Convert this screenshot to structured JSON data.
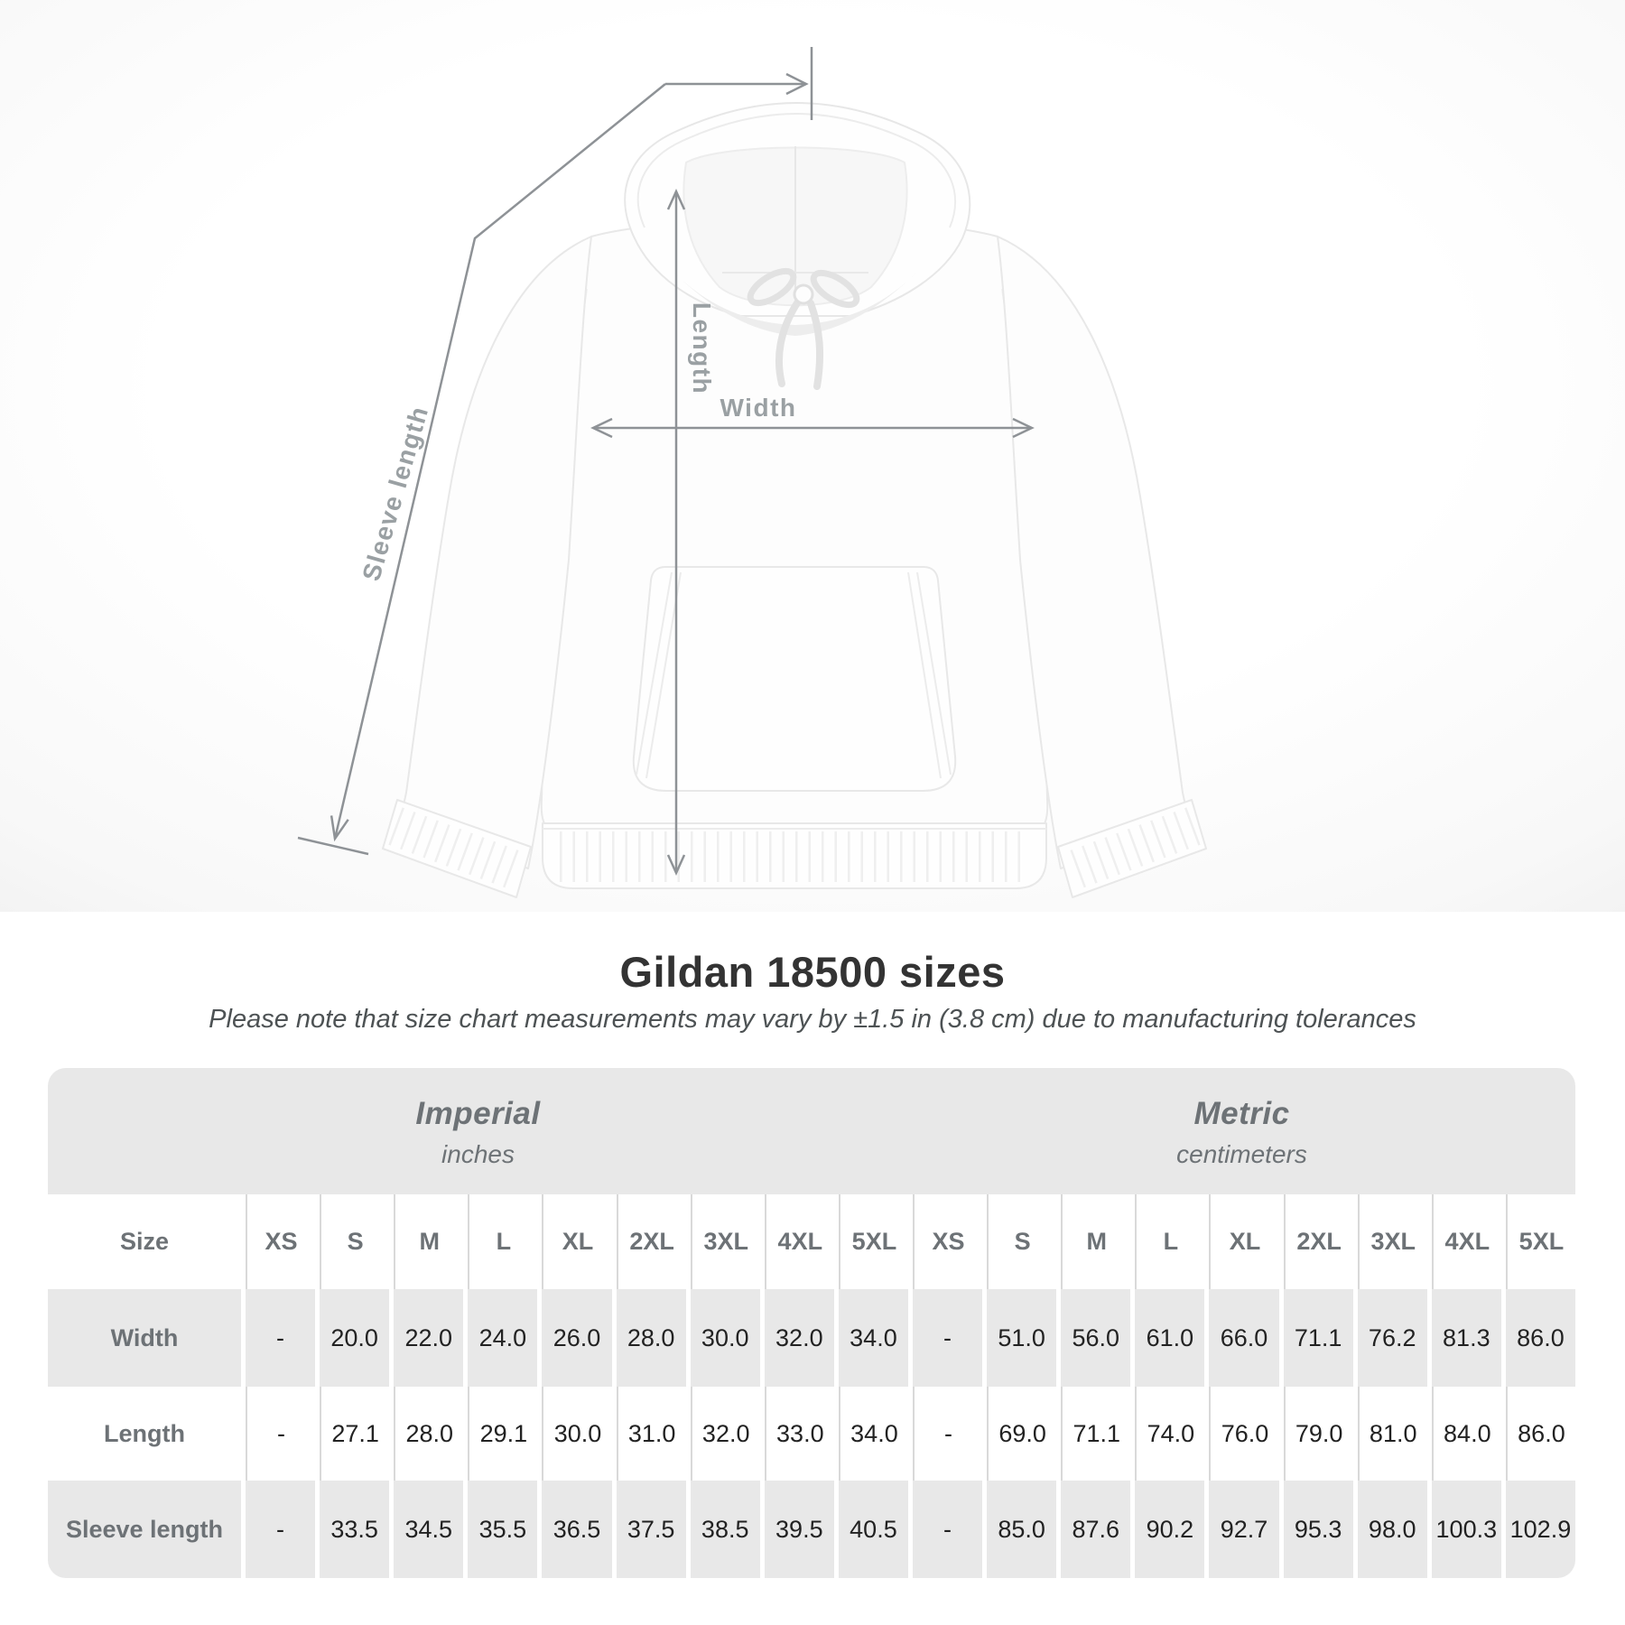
{
  "diagram": {
    "sleeve_label": "Sleeve length",
    "length_label": "Length",
    "width_label": "Width"
  },
  "title": "Gildan 18500 sizes",
  "subtitle": "Please note that size chart measurements may vary by ±1.5 in (3.8 cm) due to manufacturing tolerances",
  "table": {
    "sections": [
      {
        "label": "Imperial",
        "sublabel": "inches"
      },
      {
        "label": "Metric",
        "sublabel": "centimeters"
      }
    ],
    "size_header": "Size",
    "sizes": [
      "XS",
      "S",
      "M",
      "L",
      "XL",
      "2XL",
      "3XL",
      "4XL",
      "5XL"
    ],
    "rows": [
      {
        "label": "Width",
        "imperial": [
          "-",
          "20.0",
          "22.0",
          "24.0",
          "26.0",
          "28.0",
          "30.0",
          "32.0",
          "34.0"
        ],
        "metric": [
          "-",
          "51.0",
          "56.0",
          "61.0",
          "66.0",
          "71.1",
          "76.2",
          "81.3",
          "86.0"
        ]
      },
      {
        "label": "Length",
        "imperial": [
          "-",
          "27.1",
          "28.0",
          "29.1",
          "30.0",
          "31.0",
          "32.0",
          "33.0",
          "34.0"
        ],
        "metric": [
          "-",
          "69.0",
          "71.1",
          "74.0",
          "76.0",
          "79.0",
          "81.0",
          "84.0",
          "86.0"
        ]
      },
      {
        "label": "Sleeve length",
        "imperial": [
          "-",
          "33.5",
          "34.5",
          "35.5",
          "36.5",
          "37.5",
          "38.5",
          "39.5",
          "40.5"
        ],
        "metric": [
          "-",
          "85.0",
          "87.6",
          "90.2",
          "92.7",
          "95.3",
          "98.0",
          "100.3",
          "102.9"
        ]
      }
    ]
  },
  "colors": {
    "table_band": "#e8e8e8",
    "row_alt": "#e8e8e8",
    "separator": "#d9d9d9",
    "header_text": "#6d7276",
    "value_text": "#222222",
    "title_text": "#333333",
    "subtitle_text": "#4d5254",
    "measure_line": "#8e9296",
    "measure_label": "#9aa0a3"
  }
}
